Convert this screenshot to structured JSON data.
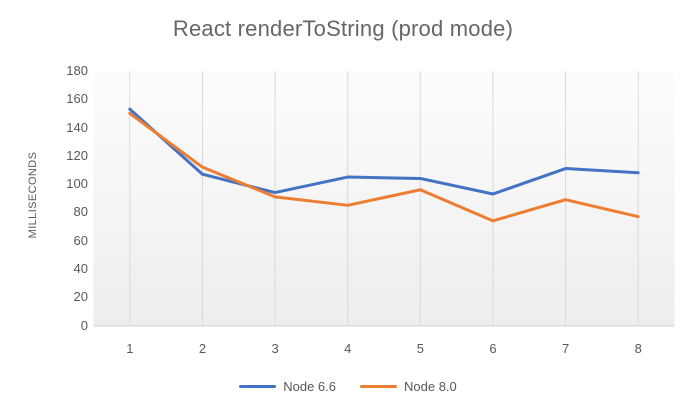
{
  "chart_data": {
    "type": "line",
    "title": "React renderToString (prod mode)",
    "xlabel": "",
    "ylabel": "MILLISECONDS",
    "categories": [
      "1",
      "2",
      "3",
      "4",
      "5",
      "6",
      "7",
      "8"
    ],
    "series": [
      {
        "name": "Node 6.6",
        "color": "#4472C4",
        "values": [
          153,
          107,
          94,
          105,
          104,
          93,
          111,
          108
        ]
      },
      {
        "name": "Node 8.0",
        "color": "#ED7D31",
        "values": [
          150,
          112,
          91,
          85,
          96,
          74,
          89,
          77
        ]
      }
    ],
    "ylim": [
      0,
      180
    ],
    "ytick_step": 20,
    "yticks": [
      180,
      160,
      140,
      120,
      100,
      80,
      60,
      40,
      20,
      0
    ],
    "grid": "vertical-only",
    "legend_position": "bottom-center",
    "colors": {
      "title_text": "#666666",
      "axis_text": "#595959",
      "gridline": "#D9D9D9",
      "axis_line": "#D9D9D9",
      "plot_bg_top": "#FDFDFD",
      "plot_bg_bottom": "#EDEDED",
      "page_bg": "#FFFFFF"
    }
  }
}
